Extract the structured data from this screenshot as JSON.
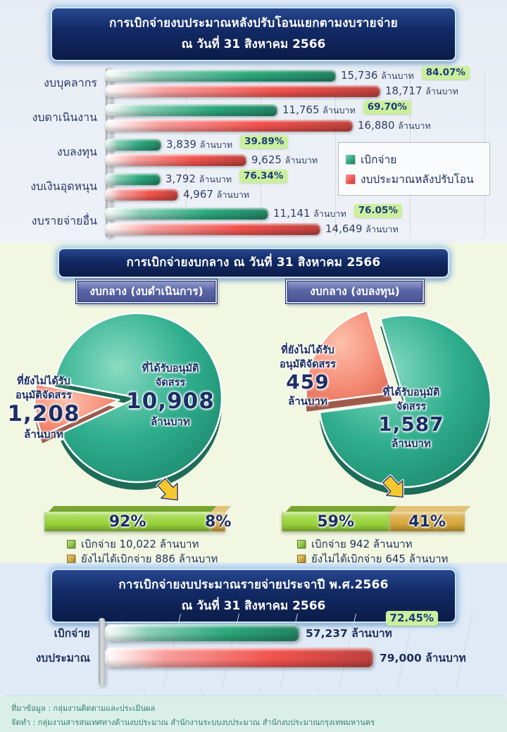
{
  "page": {
    "section2_title": "การเบิกจ่ายงบกลาง  ณ วันที่ 31 สิงหาคม 2566",
    "footer": {
      "source": "ที่มาข้อมูล : กลุ่มงานติดตามและประเมินผล",
      "prepared_by": "จัดทำ : กลุ่มงานสารสนเทศทางด้านงบประมาณ  สำนักงานระบบงบประมาณ  สำนักงบประมาณกรุงเทพมหานคร"
    }
  },
  "chart_data": [
    {
      "id": "budget-by-expenditure-type",
      "type": "bar",
      "orientation": "horizontal",
      "title": "การเบิกจ่ายงบประมาณหลังปรับโอนแยกตามงบรายจ่าย",
      "subtitle": "ณ วันที่ 31 สิงหาคม 2566",
      "unit": "ล้านบาท",
      "categories": [
        "งบบุคลากร",
        "งบดาเนินงาน",
        "งบลงทุน",
        "งบเงินอุดหนุน",
        "งบรายจ่ายอื่น"
      ],
      "series": [
        {
          "name": "เบิกจ่าย",
          "color": "#2ca87d",
          "values": [
            15736,
            11765,
            3839,
            3792,
            11141
          ],
          "value_labels": [
            "15,736",
            "11,765",
            "3,839",
            "3,792",
            "11,141"
          ]
        },
        {
          "name": "งบประมาณหลังปรับโอน",
          "color": "#f2534e",
          "values": [
            18717,
            16880,
            9625,
            4967,
            14649
          ],
          "value_labels": [
            "18,717",
            "16,880",
            "9,625",
            "4,967",
            "14,649"
          ]
        }
      ],
      "percent_labels": [
        "84.07%",
        "69.70%",
        "39.89%",
        "76.34%",
        "76.05%"
      ],
      "legend_position": "right",
      "grid": true
    },
    {
      "id": "central-budget-operating-pie",
      "type": "pie",
      "title": "งบกลาง (งบดำเนินการ)",
      "unit": "ล้านบาท",
      "slices": [
        {
          "name": "ที่ได้รับอนุมัติจัดสรร",
          "label_lines": [
            "ที่ได้รับอนุมัติ",
            "จัดสรร"
          ],
          "value": 10908,
          "value_label": "10,908",
          "color": "#2fae8e",
          "exploded": false
        },
        {
          "name": "ที่ยังไม่ได้รับอนุมัติจัดสรร",
          "label_lines": [
            "ที่ยังไม่ได้รับ",
            "อนุมัติจัดสรร"
          ],
          "value": 1208,
          "value_label": "1,208",
          "color": "#f58b75",
          "exploded": true
        }
      ],
      "stacked_bar": {
        "segments": [
          {
            "label": "92%",
            "value": 92,
            "color": "#9ad43c"
          },
          {
            "label": "8%",
            "value": 8,
            "color": "#d9a93c"
          }
        ],
        "legend": [
          {
            "text": "เบิกจ่าย 10,022 ล้านบาท",
            "color": "#8dc63f"
          },
          {
            "text": "ยังไม่ได้เบิกจ่าย 886 ล้านบาท",
            "color": "#cfa63b"
          }
        ]
      }
    },
    {
      "id": "central-budget-investment-pie",
      "type": "pie",
      "title": "งบกลาง (งบลงทุน)",
      "unit": "ล้านบาท",
      "slices": [
        {
          "name": "ที่ได้รับอนุมัติจัดสรร",
          "label_lines": [
            "ที่ได้รับอนุมัติ",
            "จัดสรร"
          ],
          "value": 1587,
          "value_label": "1,587",
          "color": "#2fae8e",
          "exploded": false
        },
        {
          "name": "ที่ยังไม่ได้รับอนุมัติจัดสรร",
          "label_lines": [
            "ที่ยังไม่ได้รับ",
            "อนุมัติจัดสรร"
          ],
          "value": 459,
          "value_label": "459",
          "color": "#f58b75",
          "exploded": true
        }
      ],
      "stacked_bar": {
        "segments": [
          {
            "label": "59%",
            "value": 59,
            "color": "#9ad43c"
          },
          {
            "label": "41%",
            "value": 41,
            "color": "#d9a93c"
          }
        ],
        "legend": [
          {
            "text": "เบิกจ่าย 942 ล้านบาท",
            "color": "#8dc63f"
          },
          {
            "text": "ยังไม่ได้เบิกจ่าย 645 ล้านบาท",
            "color": "#cfa63b"
          }
        ]
      }
    },
    {
      "id": "annual-budget-summary",
      "type": "bar",
      "orientation": "horizontal",
      "title": "การเบิกจ่ายงบประมาณรายจ่ายประจาปี  พ.ศ.2566",
      "subtitle": "ณ วันที่ 31 สิงหาคม 2566",
      "unit": "ล้านบาท",
      "rows": [
        {
          "label": "เบิกจ่าย",
          "value": 57237,
          "value_label": "57,237 ล้านบาท",
          "color": "#2ca87d"
        },
        {
          "label": "งบประมาณ",
          "value": 79000,
          "value_label": "79,000 ล้านบาท",
          "color": "#f2534e"
        }
      ],
      "percent_label": "72.45%"
    }
  ],
  "colors": {
    "header_navy": "#122a63",
    "badge_green_bg": "#cbf09c",
    "badge_text_navy": "#1d3a7c",
    "pie_green": "#2fae8e",
    "pie_salmon": "#f58b75",
    "stacked_green": "#9ad43c",
    "stacked_gold": "#d9a93c"
  }
}
